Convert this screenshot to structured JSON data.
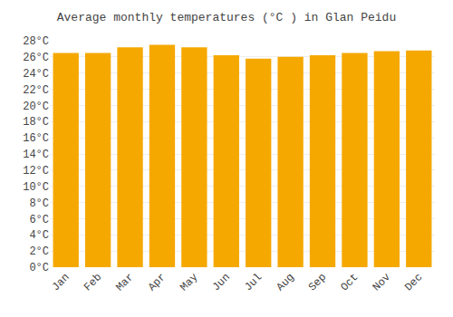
{
  "chart_data": {
    "type": "bar",
    "title": "Average monthly temperatures (°C ) in Glan Peidu",
    "categories": [
      "Jan",
      "Feb",
      "Mar",
      "Apr",
      "May",
      "Jun",
      "Jul",
      "Aug",
      "Sep",
      "Oct",
      "Nov",
      "Dec"
    ],
    "values": [
      26.5,
      26.5,
      27.2,
      27.5,
      27.2,
      26.2,
      25.8,
      26.0,
      26.2,
      26.5,
      26.7,
      26.8
    ],
    "color": "#F5A800",
    "ylim": [
      0,
      28
    ],
    "yticks": [
      {
        "value": 0,
        "label": "0°C"
      },
      {
        "value": 2,
        "label": "2°C"
      },
      {
        "value": 4,
        "label": "4°C"
      },
      {
        "value": 6,
        "label": "6°C"
      },
      {
        "value": 8,
        "label": "8°C"
      },
      {
        "value": 10,
        "label": "10°C"
      },
      {
        "value": 12,
        "label": "12°C"
      },
      {
        "value": 14,
        "label": "14°C"
      },
      {
        "value": 16,
        "label": "16°C"
      },
      {
        "value": 18,
        "label": "18°C"
      },
      {
        "value": 20,
        "label": "20°C"
      },
      {
        "value": 22,
        "label": "22°C"
      },
      {
        "value": 24,
        "label": "24°C"
      },
      {
        "value": 26,
        "label": "26°C"
      },
      {
        "value": 28,
        "label": "28°C"
      }
    ],
    "grid": true
  }
}
